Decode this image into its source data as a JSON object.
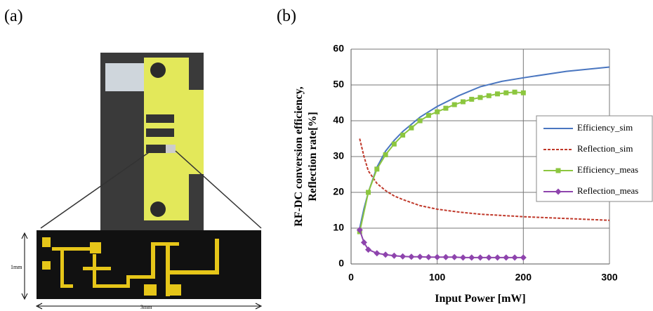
{
  "panel_a": {
    "label": "(a)",
    "height_label": "1mm",
    "width_label": "3mm"
  },
  "panel_b": {
    "label": "(b)"
  },
  "chart_data": {
    "type": "line",
    "x_label": "Input Power [mW]",
    "y_label": [
      "RF-DC conversion efficiency,",
      "Reflection rate[%]"
    ],
    "xlim": [
      0,
      300
    ],
    "xticks": [
      0,
      100,
      200,
      300
    ],
    "ylim": [
      0,
      60
    ],
    "yticks": [
      0,
      10,
      20,
      30,
      40,
      50,
      60
    ],
    "grid": true,
    "legend": "right",
    "series": [
      {
        "name": "Efficiency_sim",
        "color": "#4a76c0",
        "style": "solid",
        "x": [
          10,
          15,
          20,
          30,
          40,
          50,
          60,
          80,
          100,
          125,
          150,
          175,
          200,
          250,
          300
        ],
        "values": [
          10,
          15.5,
          20,
          27,
          31.5,
          34.5,
          37,
          41,
          44,
          47,
          49.5,
          51,
          52,
          53.8,
          55
        ]
      },
      {
        "name": "Reflection_sim",
        "color": "#c0392b",
        "style": "dashed",
        "x": [
          10,
          15,
          20,
          30,
          40,
          50,
          60,
          80,
          100,
          125,
          150,
          200,
          250,
          300
        ],
        "values": [
          35,
          30,
          26,
          22.5,
          20.5,
          19,
          18,
          16.3,
          15.3,
          14.5,
          13.9,
          13.2,
          12.7,
          12.2
        ]
      },
      {
        "name": "Efficiency_meas",
        "color": "#8cc63f",
        "style": "solid",
        "marker": "square",
        "x": [
          10,
          20,
          30,
          40,
          50,
          60,
          70,
          80,
          90,
          100,
          110,
          120,
          130,
          140,
          150,
          160,
          170,
          180,
          190,
          200
        ],
        "values": [
          9,
          20,
          26.5,
          30.5,
          33.5,
          36,
          38,
          40,
          41.5,
          42.5,
          43.5,
          44.5,
          45.3,
          46,
          46.5,
          47,
          47.5,
          47.8,
          48,
          47.8
        ]
      },
      {
        "name": "Reflection_meas",
        "color": "#8e44ad",
        "style": "solid",
        "marker": "diamond",
        "x": [
          10,
          15,
          20,
          30,
          40,
          50,
          60,
          70,
          80,
          90,
          100,
          110,
          120,
          130,
          140,
          150,
          160,
          170,
          180,
          190,
          200
        ],
        "values": [
          9.5,
          6,
          4,
          3,
          2.6,
          2.3,
          2.1,
          2,
          2,
          1.9,
          1.9,
          1.9,
          1.9,
          1.8,
          1.8,
          1.8,
          1.8,
          1.8,
          1.8,
          1.8,
          1.8
        ]
      }
    ]
  }
}
